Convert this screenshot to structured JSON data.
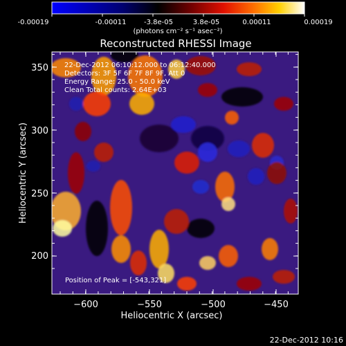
{
  "colorbar": {
    "tick_labels": [
      "-0.00019",
      "-0.00011",
      "-3.8e-05",
      "3.8e-05",
      "0.00011",
      "0.00019"
    ],
    "unit_label": "(photons cm⁻² s⁻¹ asec⁻²)",
    "colors": [
      "#0000ff",
      "#000060",
      "#000000",
      "#7a0000",
      "#e01000",
      "#ff7000",
      "#ffd000",
      "#ffffff"
    ]
  },
  "image": {
    "title": "Reconstructed RHESSI Image",
    "annotations": [
      "22-Dec-2012 06:10:12.000 to 06:12:40.000",
      "Detectors: 3F 5F 6F 7F 8F 9F, Att 0",
      "Energy Range: 25.0 - 50.0 keV",
      "Clean     Total counts: 2.64E+03"
    ],
    "peak_label": "Position of Peak = [-543,321]",
    "background_color": "#3a1a80"
  },
  "axes": {
    "xlabel": "Heliocentric X (arcsec)",
    "ylabel": "Heliocentric Y (arcsec)",
    "x_ticks": [
      "−600",
      "−550",
      "−500",
      "−450"
    ],
    "y_ticks": [
      "200",
      "250",
      "300",
      "350"
    ],
    "xlim": [
      -625,
      -433
    ],
    "ylim": [
      170,
      362
    ]
  },
  "footer": {
    "timestamp": "22-Dec-2012 10:16"
  }
}
